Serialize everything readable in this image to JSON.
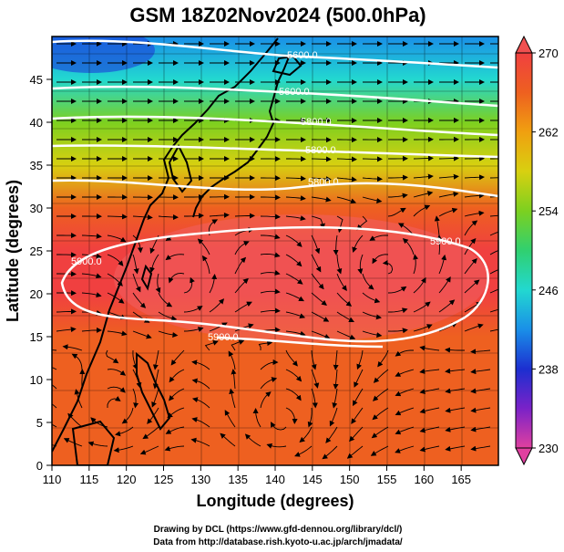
{
  "chart_data": {
    "type": "heatmap",
    "title": "GSM 18Z02Nov2024 (500.0hPa)",
    "xlabel": "Longitude (degrees)",
    "ylabel": "Latitude  (degrees)",
    "xlim": [
      110,
      170
    ],
    "ylim": [
      0,
      50
    ],
    "x_ticks": [
      "110",
      "115",
      "120",
      "125",
      "130",
      "135",
      "140",
      "145",
      "150",
      "155",
      "160",
      "165"
    ],
    "y_ticks": [
      "0",
      "5",
      "10",
      "15",
      "20",
      "25",
      "30",
      "35",
      "40",
      "45"
    ],
    "colorbar": {
      "min": 230,
      "max": 270,
      "ticks": [
        "230",
        "238",
        "246",
        "254",
        "262",
        "270"
      ],
      "colors": [
        "#e0409f",
        "#7a22c8",
        "#1c2fd0",
        "#1a8fe8",
        "#22d8d0",
        "#30d070",
        "#7cd020",
        "#d8d010",
        "#f0a010",
        "#ee6020",
        "#f04040"
      ]
    },
    "temperature_by_latitude": [
      {
        "lat": 50,
        "value": 243
      },
      {
        "lat": 45,
        "value": 247
      },
      {
        "lat": 40,
        "value": 253
      },
      {
        "lat": 35,
        "value": 258
      },
      {
        "lat": 30,
        "value": 264
      },
      {
        "lat": 25,
        "value": 268
      },
      {
        "lat": 20,
        "value": 268
      },
      {
        "lat": 15,
        "value": 267
      },
      {
        "lat": 10,
        "value": 267
      },
      {
        "lat": 5,
        "value": 267
      },
      {
        "lat": 0,
        "value": 267
      }
    ],
    "contour_labels": [
      "5600.0",
      "5600.0",
      "5800.0",
      "5800.0",
      "5800.0",
      "5900.0",
      "5900.0",
      "5900.0"
    ],
    "credits": [
      "Drawing by DCL (https://www.gfd-dennou.org/library/dcl/)",
      "Data from http://database.rish.kyoto-u.ac.jp/arch/jmadata/"
    ]
  }
}
